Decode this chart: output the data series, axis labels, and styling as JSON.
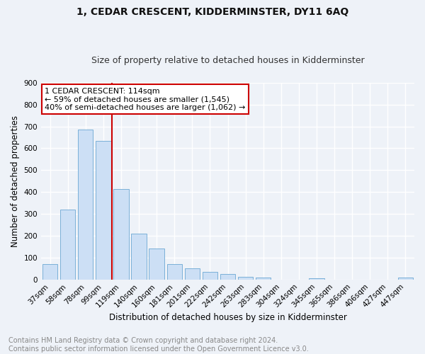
{
  "title": "1, CEDAR CRESCENT, KIDDERMINSTER, DY11 6AQ",
  "subtitle": "Size of property relative to detached houses in Kidderminster",
  "xlabel": "Distribution of detached houses by size in Kidderminster",
  "ylabel": "Number of detached properties",
  "categories": [
    "37sqm",
    "58sqm",
    "78sqm",
    "99sqm",
    "119sqm",
    "140sqm",
    "160sqm",
    "181sqm",
    "201sqm",
    "222sqm",
    "242sqm",
    "263sqm",
    "283sqm",
    "304sqm",
    "324sqm",
    "345sqm",
    "365sqm",
    "386sqm",
    "406sqm",
    "427sqm",
    "447sqm"
  ],
  "values": [
    70,
    320,
    685,
    635,
    415,
    210,
    140,
    70,
    50,
    35,
    25,
    12,
    8,
    0,
    0,
    7,
    0,
    0,
    0,
    0,
    8
  ],
  "bar_color": "#ccdff5",
  "bar_edge_color": "#7ab0d8",
  "vline_color": "#cc0000",
  "vline_pos": 3.5,
  "annotation_text": "1 CEDAR CRESCENT: 114sqm\n← 59% of detached houses are smaller (1,545)\n40% of semi-detached houses are larger (1,062) →",
  "annotation_box_color": "#ffffff",
  "annotation_box_edge_color": "#cc0000",
  "ylim": [
    0,
    900
  ],
  "yticks": [
    0,
    100,
    200,
    300,
    400,
    500,
    600,
    700,
    800,
    900
  ],
  "footer_text": "Contains HM Land Registry data © Crown copyright and database right 2024.\nContains public sector information licensed under the Open Government Licence v3.0.",
  "bg_color": "#eef2f8",
  "plot_bg_color": "#eef2f8",
  "grid_color": "#ffffff",
  "title_fontsize": 10,
  "subtitle_fontsize": 9,
  "axis_label_fontsize": 8.5,
  "tick_fontsize": 7.5,
  "footer_fontsize": 7,
  "annotation_fontsize": 8
}
